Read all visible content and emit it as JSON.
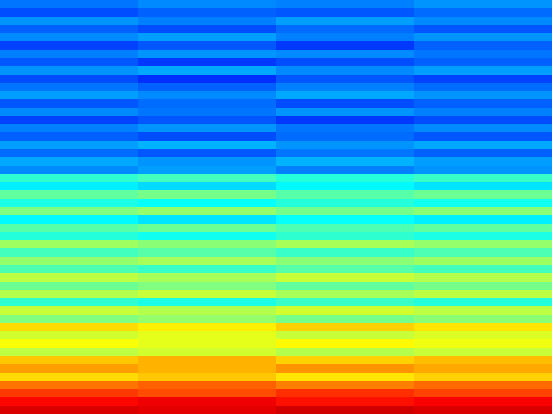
{
  "chart_data": {
    "type": "heatmap",
    "tick_labels": false,
    "zlim": [
      0,
      1
    ],
    "cells": [
      [
        0.24,
        0.26,
        0.25,
        0.27
      ],
      [
        0.2,
        0.22,
        0.21,
        0.23
      ],
      [
        0.27,
        0.25,
        0.28,
        0.26
      ],
      [
        0.22,
        0.2,
        0.23,
        0.21
      ],
      [
        0.26,
        0.28,
        0.25,
        0.27
      ],
      [
        0.19,
        0.21,
        0.18,
        0.22
      ],
      [
        0.25,
        0.27,
        0.26,
        0.24
      ],
      [
        0.21,
        0.18,
        0.2,
        0.22
      ],
      [
        0.27,
        0.29,
        0.26,
        0.28
      ],
      [
        0.2,
        0.17,
        0.21,
        0.19
      ],
      [
        0.24,
        0.22,
        0.25,
        0.23
      ],
      [
        0.28,
        0.26,
        0.29,
        0.27
      ],
      [
        0.21,
        0.23,
        0.2,
        0.22
      ],
      [
        0.26,
        0.24,
        0.27,
        0.25
      ],
      [
        0.19,
        0.21,
        0.18,
        0.2
      ],
      [
        0.25,
        0.27,
        0.24,
        0.26
      ],
      [
        0.22,
        0.2,
        0.23,
        0.21
      ],
      [
        0.28,
        0.3,
        0.27,
        0.29
      ],
      [
        0.23,
        0.21,
        0.24,
        0.22
      ],
      [
        0.29,
        0.27,
        0.3,
        0.28
      ],
      [
        0.26,
        0.28,
        0.25,
        0.27
      ],
      [
        0.42,
        0.44,
        0.41,
        0.43
      ],
      [
        0.36,
        0.34,
        0.37,
        0.35
      ],
      [
        0.47,
        0.49,
        0.46,
        0.48
      ],
      [
        0.4,
        0.38,
        0.41,
        0.39
      ],
      [
        0.5,
        0.52,
        0.49,
        0.51
      ],
      [
        0.37,
        0.35,
        0.38,
        0.36
      ],
      [
        0.46,
        0.48,
        0.45,
        0.47
      ],
      [
        0.41,
        0.39,
        0.42,
        0.4
      ],
      [
        0.53,
        0.51,
        0.54,
        0.52
      ],
      [
        0.44,
        0.46,
        0.43,
        0.45
      ],
      [
        0.52,
        0.54,
        0.51,
        0.53
      ],
      [
        0.45,
        0.43,
        0.46,
        0.44
      ],
      [
        0.56,
        0.54,
        0.57,
        0.55
      ],
      [
        0.48,
        0.5,
        0.47,
        0.49
      ],
      [
        0.55,
        0.57,
        0.54,
        0.56
      ],
      [
        0.42,
        0.4,
        0.43,
        0.41
      ],
      [
        0.57,
        0.55,
        0.58,
        0.56
      ],
      [
        0.5,
        0.52,
        0.49,
        0.51
      ],
      [
        0.66,
        0.64,
        0.67,
        0.65
      ],
      [
        0.58,
        0.6,
        0.57,
        0.59
      ],
      [
        0.62,
        0.6,
        0.63,
        0.61
      ],
      [
        0.56,
        0.58,
        0.55,
        0.57
      ],
      [
        0.68,
        0.7,
        0.67,
        0.69
      ],
      [
        0.72,
        0.7,
        0.73,
        0.71
      ],
      [
        0.66,
        0.68,
        0.65,
        0.67
      ],
      [
        0.76,
        0.78,
        0.75,
        0.77
      ],
      [
        0.82,
        0.8,
        0.83,
        0.81
      ],
      [
        0.87,
        0.89,
        0.86,
        0.88
      ],
      [
        0.91,
        0.9,
        0.92,
        0.91
      ]
    ]
  }
}
